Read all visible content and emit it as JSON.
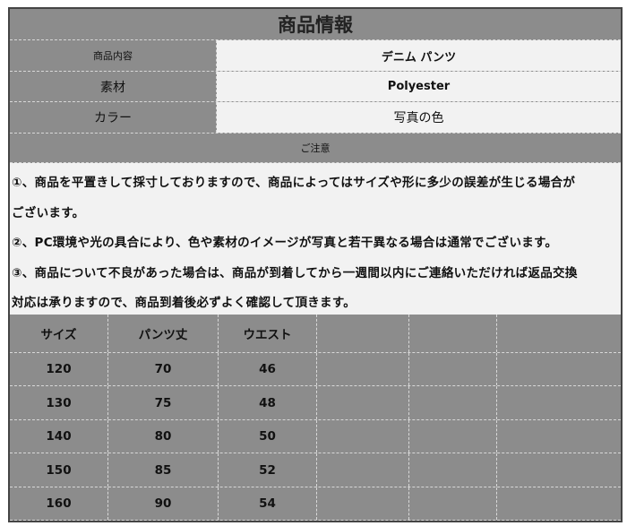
{
  "title": "商品情報",
  "info": [
    {
      "label": "商品内容",
      "value": "デニム パンツ"
    },
    {
      "label": "素材",
      "value": "Polyester"
    },
    {
      "label": "カラー",
      "value": "写真の色"
    }
  ],
  "notice_header": "ご注意",
  "notes": [
    "①、商品を平置きして採寸しておりますので、商品によってはサイズや形に多少の誤差が生じる場合が",
    "ございます。",
    "②、PC環境や光の具合により、色や素材のイメージが写真と若干異なる場合は通常でございます。",
    "③、商品について不良があった場合は、商品が到着してから一週間以内にご連絡いただければ返品交換",
    "対応は承りますので、商品到着後必ずよく確認して頂きます。"
  ],
  "size_table": {
    "headers": [
      "サイズ",
      "パンツ丈",
      "ウエスト",
      "",
      "",
      ""
    ],
    "rows": [
      [
        "120",
        "70",
        "46",
        "",
        "",
        ""
      ],
      [
        "130",
        "75",
        "48",
        "",
        "",
        ""
      ],
      [
        "140",
        "80",
        "50",
        "",
        "",
        ""
      ],
      [
        "150",
        "85",
        "52",
        "",
        "",
        ""
      ],
      [
        "160",
        "90",
        "54",
        "",
        "",
        ""
      ]
    ]
  }
}
